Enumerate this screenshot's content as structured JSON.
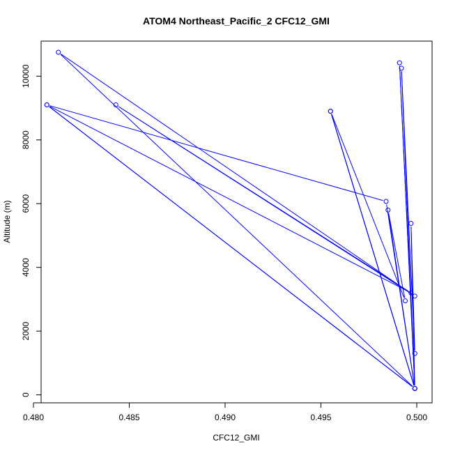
{
  "chart_data": {
    "type": "scatter",
    "title": "ATOM4 Northeast_Pacific_2 CFC12_GMI",
    "xlabel": "CFC12_GMI",
    "ylabel": "Altitude (m)",
    "xlim": [
      0.4804,
      0.5008
    ],
    "ylim": [
      -250,
      11100
    ],
    "x_ticks": [
      "0.480",
      "0.485",
      "0.490",
      "0.495",
      "0.500"
    ],
    "y_ticks": [
      "0",
      "2000",
      "4000",
      "6000",
      "8000",
      "10000"
    ],
    "grid": false,
    "legend": "none",
    "marker": "open-circle",
    "connected": true,
    "series": [
      {
        "color": "#0000ff",
        "points": [
          {
            "x": 0.4999,
            "y": 200
          },
          {
            "x": 0.4813,
            "y": 10750
          },
          {
            "x": 0.4999,
            "y": 3100
          },
          {
            "x": 0.4843,
            "y": 9100
          },
          {
            "x": 0.4997,
            "y": 3200
          },
          {
            "x": 0.4807,
            "y": 9100
          },
          {
            "x": 0.4999,
            "y": 200
          },
          {
            "x": 0.4955,
            "y": 8900
          },
          {
            "x": 0.4994,
            "y": 2950
          },
          {
            "x": 0.4985,
            "y": 5800
          },
          {
            "x": 0.4999,
            "y": 200
          },
          {
            "x": 0.4984,
            "y": 6070
          },
          {
            "x": 0.4807,
            "y": 9100
          },
          {
            "x": 0.4999,
            "y": 200
          },
          {
            "x": 0.4991,
            "y": 10420
          },
          {
            "x": 0.4999,
            "y": 200
          },
          {
            "x": 0.4992,
            "y": 10250
          },
          {
            "x": 0.4999,
            "y": 1300
          },
          {
            "x": 0.4997,
            "y": 5380
          },
          {
            "x": 0.4999,
            "y": 200
          },
          {
            "x": 0.4955,
            "y": 8900
          },
          {
            "x": 0.4999,
            "y": 200
          }
        ]
      }
    ]
  }
}
